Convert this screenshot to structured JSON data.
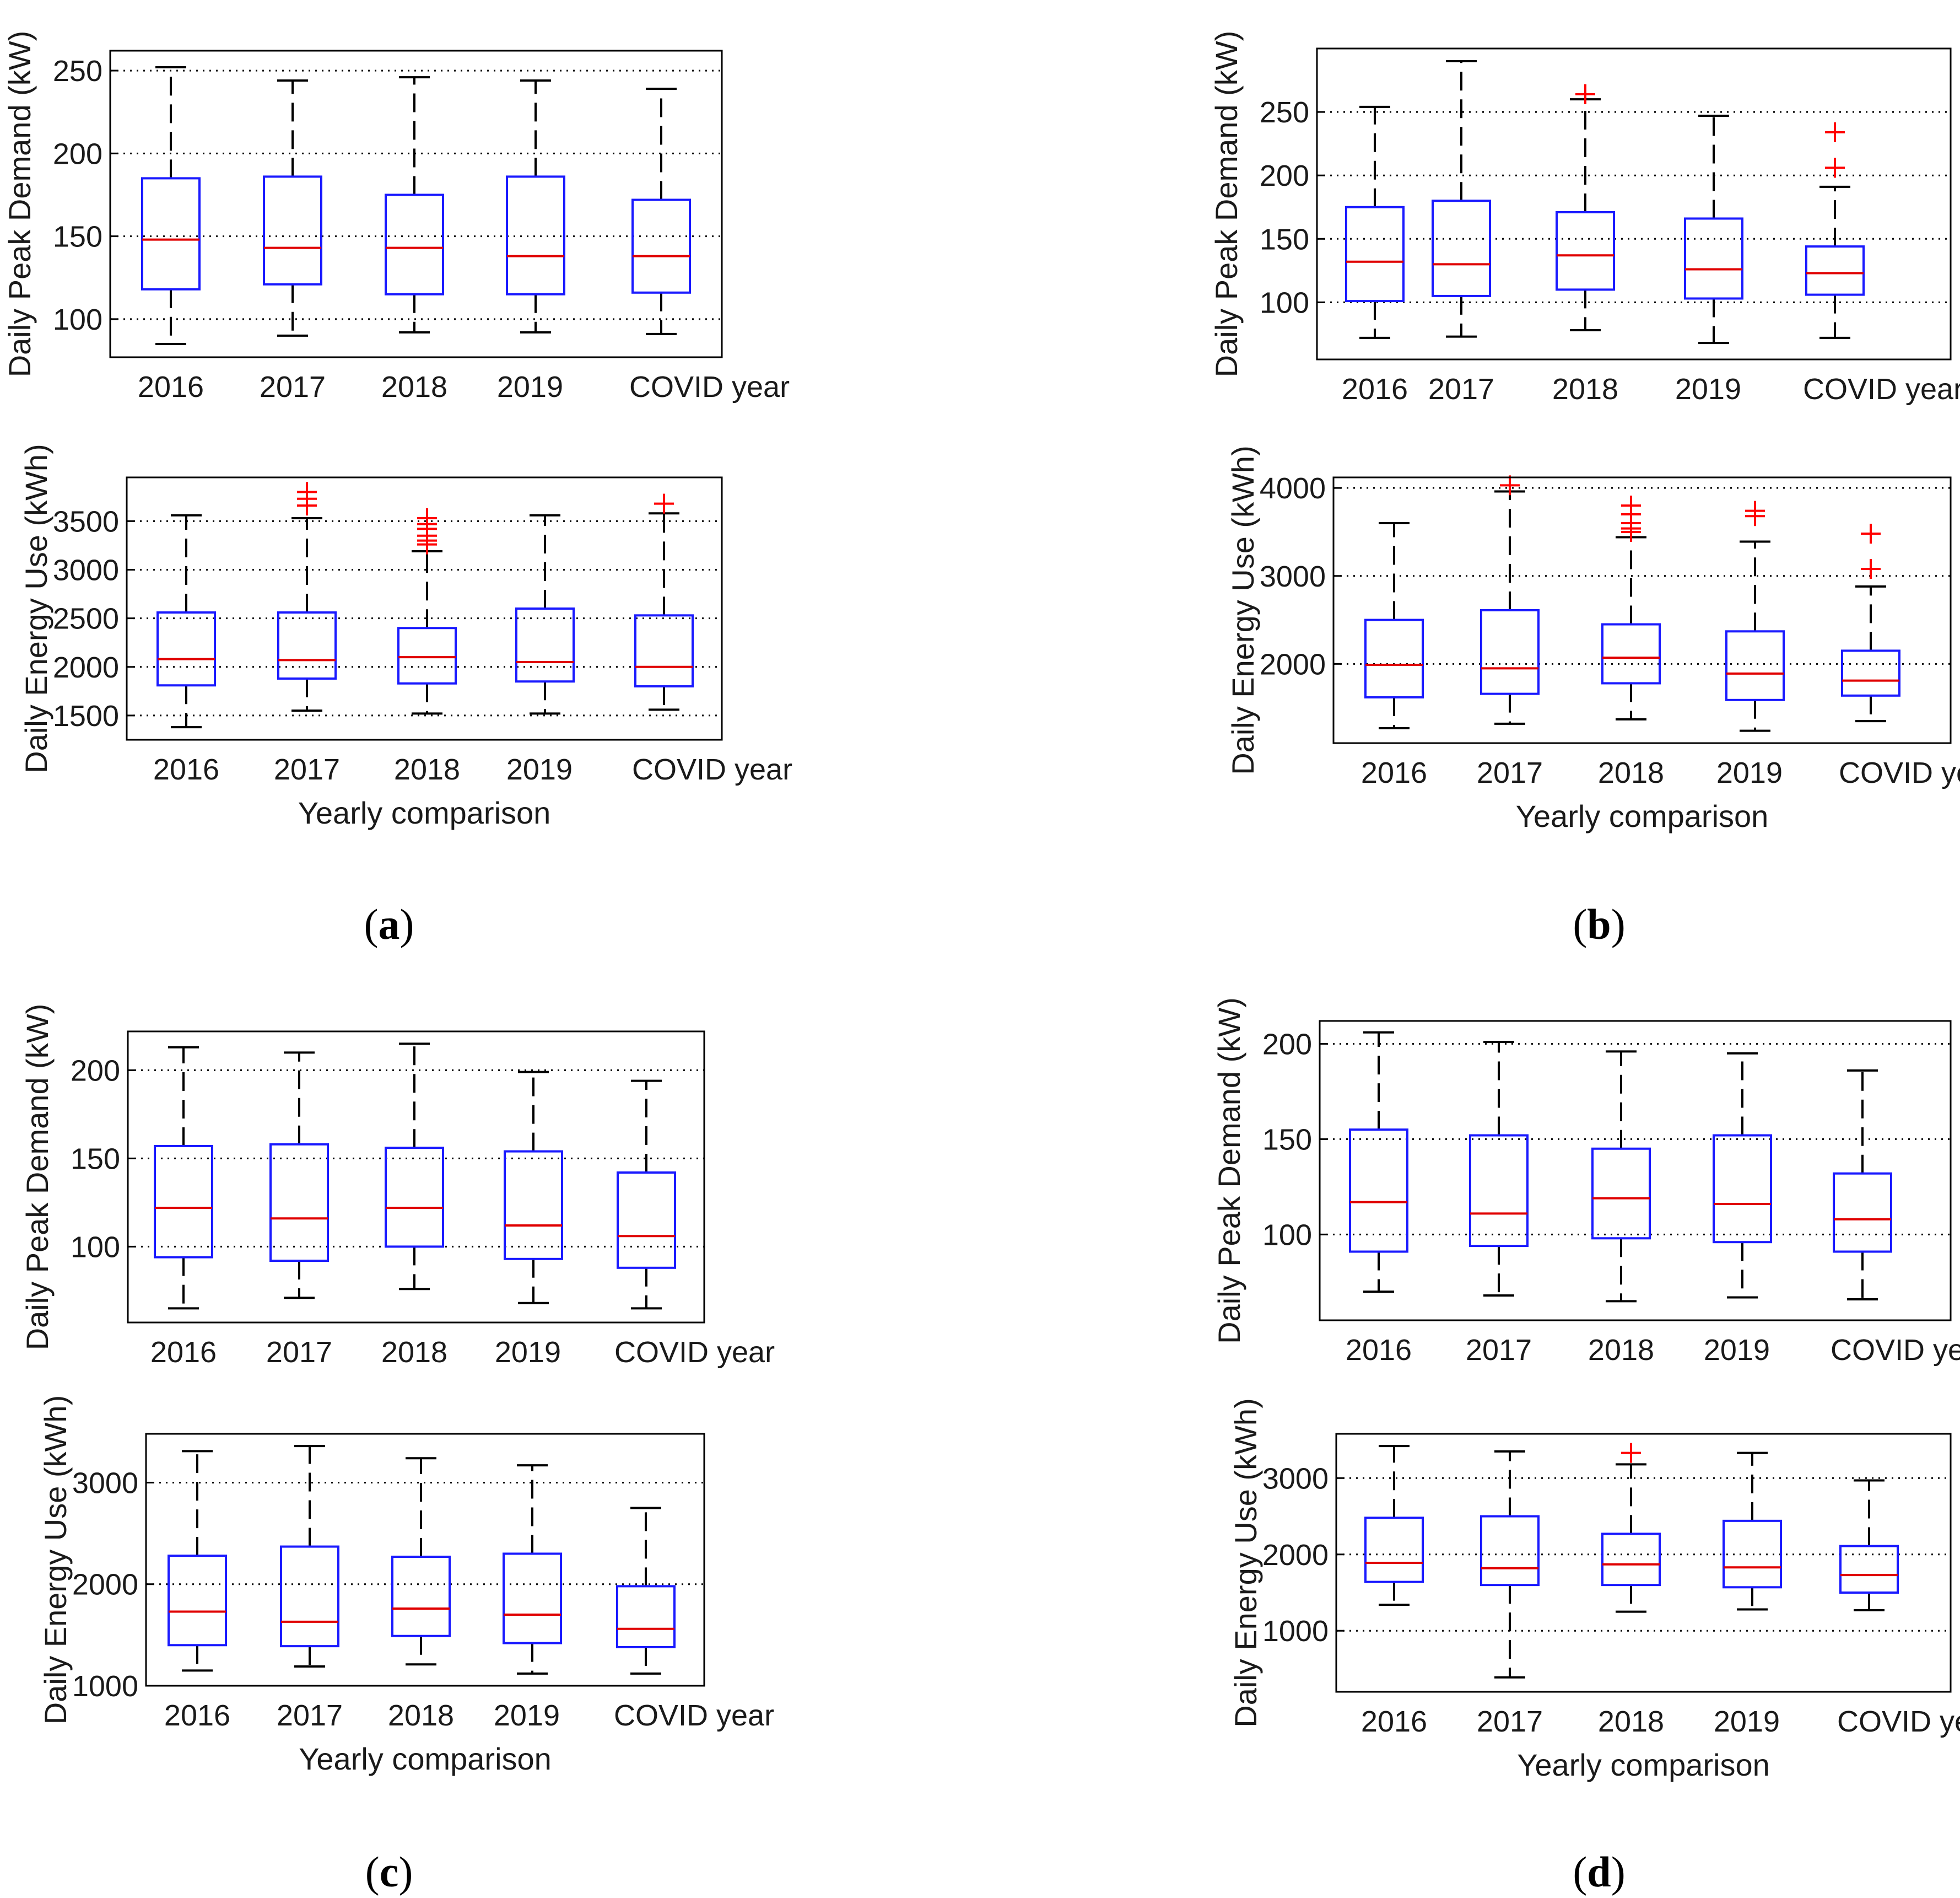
{
  "panel_labels": {
    "a": "a",
    "b": "b",
    "c": "c",
    "d": "d"
  },
  "colors": {
    "box": "#1a1aff",
    "median": "#e00000",
    "outlier": "#ff0000",
    "whisker": "#000000",
    "grid": "#000000",
    "axis": "#000000"
  },
  "chart_data": [
    {
      "panel": "a",
      "type": "box",
      "title": "",
      "categories": [
        "2016",
        "2017",
        "2018",
        "2019",
        "COVID year"
      ],
      "xlabel": "",
      "ylabel": "Daily Peak Demand (kW)",
      "ylim": [
        77,
        262
      ],
      "yticks": [
        100,
        150,
        200,
        250
      ],
      "boxes": [
        {
          "min": 85,
          "q1": 118,
          "median": 148,
          "q3": 185,
          "max": 252,
          "outliers": []
        },
        {
          "min": 90,
          "q1": 121,
          "median": 143,
          "q3": 186,
          "max": 244,
          "outliers": []
        },
        {
          "min": 92,
          "q1": 115,
          "median": 143,
          "q3": 175,
          "max": 246,
          "outliers": []
        },
        {
          "min": 92,
          "q1": 115,
          "median": 138,
          "q3": 186,
          "max": 244,
          "outliers": []
        },
        {
          "min": 91,
          "q1": 116,
          "median": 138,
          "q3": 172,
          "max": 239,
          "outliers": []
        }
      ]
    },
    {
      "panel": "a",
      "type": "box",
      "title": "",
      "categories": [
        "2016",
        "2017",
        "2018",
        "2019",
        "COVID year"
      ],
      "xlabel": "Yearly comparison",
      "ylabel": "Daily Energy Use (kWh)",
      "ylim": [
        1250,
        3950
      ],
      "yticks": [
        1500,
        2000,
        2500,
        3000,
        3500
      ],
      "boxes": [
        {
          "min": 1380,
          "q1": 1810,
          "median": 2080,
          "q3": 2560,
          "max": 3560,
          "outliers": []
        },
        {
          "min": 1550,
          "q1": 1880,
          "median": 2070,
          "q3": 2560,
          "max": 3530,
          "outliers": [
            3660,
            3730,
            3800
          ]
        },
        {
          "min": 1520,
          "q1": 1830,
          "median": 2100,
          "q3": 2400,
          "max": 3190,
          "outliers": [
            3260,
            3300,
            3350,
            3420,
            3470,
            3530
          ]
        },
        {
          "min": 1520,
          "q1": 1850,
          "median": 2050,
          "q3": 2600,
          "max": 3560,
          "outliers": []
        },
        {
          "min": 1560,
          "q1": 1800,
          "median": 2000,
          "q3": 2530,
          "max": 3580,
          "outliers": [
            3680
          ]
        }
      ]
    },
    {
      "panel": "b",
      "type": "box",
      "title": "",
      "categories": [
        "2016",
        "2017",
        "2018",
        "2019",
        "COVID year"
      ],
      "xlabel": "",
      "ylabel": "Daily Peak Demand (kW)",
      "ylim": [
        55,
        300
      ],
      "yticks": [
        100,
        150,
        200,
        250
      ],
      "boxes": [
        {
          "min": 72,
          "q1": 101,
          "median": 132,
          "q3": 175,
          "max": 254,
          "outliers": []
        },
        {
          "min": 73,
          "q1": 105,
          "median": 130,
          "q3": 180,
          "max": 290,
          "outliers": []
        },
        {
          "min": 78,
          "q1": 110,
          "median": 137,
          "q3": 171,
          "max": 260,
          "outliers": [
            264
          ]
        },
        {
          "min": 68,
          "q1": 103,
          "median": 126,
          "q3": 166,
          "max": 247,
          "outliers": []
        },
        {
          "min": 72,
          "q1": 106,
          "median": 123,
          "q3": 144,
          "max": 191,
          "outliers": [
            206,
            234
          ]
        }
      ]
    },
    {
      "panel": "b",
      "type": "box",
      "title": "",
      "categories": [
        "2016",
        "2017",
        "2018",
        "2019",
        "COVID year"
      ],
      "xlabel": "Yearly comparison",
      "ylabel": "Daily Energy Use (kWh)",
      "ylim": [
        1100,
        4120
      ],
      "yticks": [
        2000,
        3000,
        4000
      ],
      "boxes": [
        {
          "min": 1270,
          "q1": 1620,
          "median": 1990,
          "q3": 2500,
          "max": 3600,
          "outliers": []
        },
        {
          "min": 1320,
          "q1": 1660,
          "median": 1950,
          "q3": 2610,
          "max": 3960,
          "outliers": [
            4030
          ]
        },
        {
          "min": 1370,
          "q1": 1780,
          "median": 2070,
          "q3": 2450,
          "max": 3440,
          "outliers": [
            3500,
            3540,
            3600,
            3700,
            3800
          ]
        },
        {
          "min": 1240,
          "q1": 1590,
          "median": 1890,
          "q3": 2370,
          "max": 3390,
          "outliers": [
            3680,
            3740
          ]
        },
        {
          "min": 1350,
          "q1": 1640,
          "median": 1810,
          "q3": 2150,
          "max": 2880,
          "outliers": [
            3080,
            3480
          ]
        }
      ]
    },
    {
      "panel": "c",
      "type": "box",
      "title": "",
      "categories": [
        "2016",
        "2017",
        "2018",
        "2019",
        "COVID year"
      ],
      "xlabel": "",
      "ylabel": "Daily Peak Demand (kW)",
      "ylim": [
        57,
        222
      ],
      "yticks": [
        100,
        150,
        200
      ],
      "boxes": [
        {
          "min": 65,
          "q1": 94,
          "median": 122,
          "q3": 157,
          "max": 213,
          "outliers": []
        },
        {
          "min": 71,
          "q1": 92,
          "median": 116,
          "q3": 158,
          "max": 210,
          "outliers": []
        },
        {
          "min": 76,
          "q1": 100,
          "median": 122,
          "q3": 156,
          "max": 215,
          "outliers": []
        },
        {
          "min": 68,
          "q1": 93,
          "median": 112,
          "q3": 154,
          "max": 199,
          "outliers": []
        },
        {
          "min": 65,
          "q1": 88,
          "median": 106,
          "q3": 142,
          "max": 194,
          "outliers": []
        }
      ]
    },
    {
      "panel": "c",
      "type": "box",
      "title": "",
      "categories": [
        "2016",
        "2017",
        "2018",
        "2019",
        "COVID year"
      ],
      "xlabel": "Yearly comparison",
      "ylabel": "Daily Energy Use (kWh)",
      "ylim": [
        1000,
        3480
      ],
      "yticks": [
        1000,
        2000,
        3000
      ],
      "boxes": [
        {
          "min": 1150,
          "q1": 1400,
          "median": 1730,
          "q3": 2280,
          "max": 3310,
          "outliers": []
        },
        {
          "min": 1190,
          "q1": 1390,
          "median": 1630,
          "q3": 2370,
          "max": 3360,
          "outliers": []
        },
        {
          "min": 1210,
          "q1": 1490,
          "median": 1760,
          "q3": 2270,
          "max": 3240,
          "outliers": []
        },
        {
          "min": 1120,
          "q1": 1420,
          "median": 1700,
          "q3": 2300,
          "max": 3170,
          "outliers": []
        },
        {
          "min": 1120,
          "q1": 1380,
          "median": 1560,
          "q3": 1980,
          "max": 2750,
          "outliers": []
        }
      ]
    },
    {
      "panel": "d",
      "type": "box",
      "title": "",
      "categories": [
        "2016",
        "2017",
        "2018",
        "2019",
        "COVID year"
      ],
      "xlabel": "",
      "ylabel": "Daily Peak Demand (kW)",
      "ylim": [
        55,
        212
      ],
      "yticks": [
        100,
        150,
        200
      ],
      "boxes": [
        {
          "min": 70,
          "q1": 91,
          "median": 117,
          "q3": 155,
          "max": 206,
          "outliers": []
        },
        {
          "min": 68,
          "q1": 94,
          "median": 111,
          "q3": 152,
          "max": 201,
          "outliers": []
        },
        {
          "min": 65,
          "q1": 98,
          "median": 119,
          "q3": 145,
          "max": 196,
          "outliers": []
        },
        {
          "min": 67,
          "q1": 96,
          "median": 116,
          "q3": 152,
          "max": 195,
          "outliers": []
        },
        {
          "min": 66,
          "q1": 91,
          "median": 108,
          "q3": 132,
          "max": 186,
          "outliers": []
        }
      ]
    },
    {
      "panel": "d",
      "type": "box",
      "title": "",
      "categories": [
        "2016",
        "2017",
        "2018",
        "2019",
        "COVID year"
      ],
      "xlabel": "Yearly comparison",
      "ylabel": "Daily Energy Use (kWh)",
      "ylim": [
        200,
        3580
      ],
      "yticks": [
        1000,
        2000,
        3000
      ],
      "boxes": [
        {
          "min": 1340,
          "q1": 1640,
          "median": 1890,
          "q3": 2480,
          "max": 3420,
          "outliers": []
        },
        {
          "min": 390,
          "q1": 1600,
          "median": 1820,
          "q3": 2500,
          "max": 3350,
          "outliers": []
        },
        {
          "min": 1250,
          "q1": 1600,
          "median": 1870,
          "q3": 2270,
          "max": 3180,
          "outliers": [
            3330
          ]
        },
        {
          "min": 1280,
          "q1": 1570,
          "median": 1830,
          "q3": 2440,
          "max": 3330,
          "outliers": []
        },
        {
          "min": 1270,
          "q1": 1500,
          "median": 1730,
          "q3": 2110,
          "max": 2970,
          "outliers": []
        }
      ]
    }
  ]
}
